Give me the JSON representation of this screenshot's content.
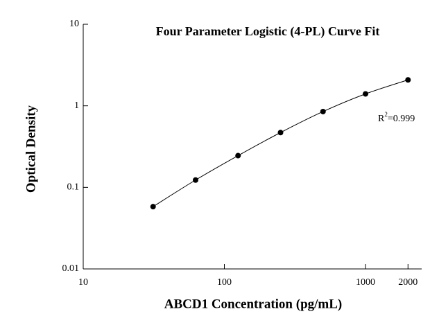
{
  "chart_data": {
    "type": "scatter",
    "title": "Four Parameter Logistic (4-PL) Curve Fit",
    "x_label": "ABCD1 Concentration (pg/mL)",
    "y_label": "Optical Density",
    "x": [
      31.25,
      62.5,
      125,
      250,
      500,
      1000,
      2000
    ],
    "series": [
      {
        "values": [
          0.058,
          0.123,
          0.245,
          0.47,
          0.85,
          1.4,
          2.08
        ],
        "color": "#000000"
      }
    ],
    "xlim": [
      10,
      2500
    ],
    "ylim": [
      0.01,
      10
    ],
    "xticks": [
      10,
      100,
      1000,
      2000
    ],
    "yticks": [
      0.01,
      0.1,
      1,
      10
    ],
    "xscale": "log",
    "yscale": "log",
    "fit_curve": true,
    "annotation": {
      "base": "R",
      "superscript": "2",
      "text": "=0.999"
    }
  }
}
